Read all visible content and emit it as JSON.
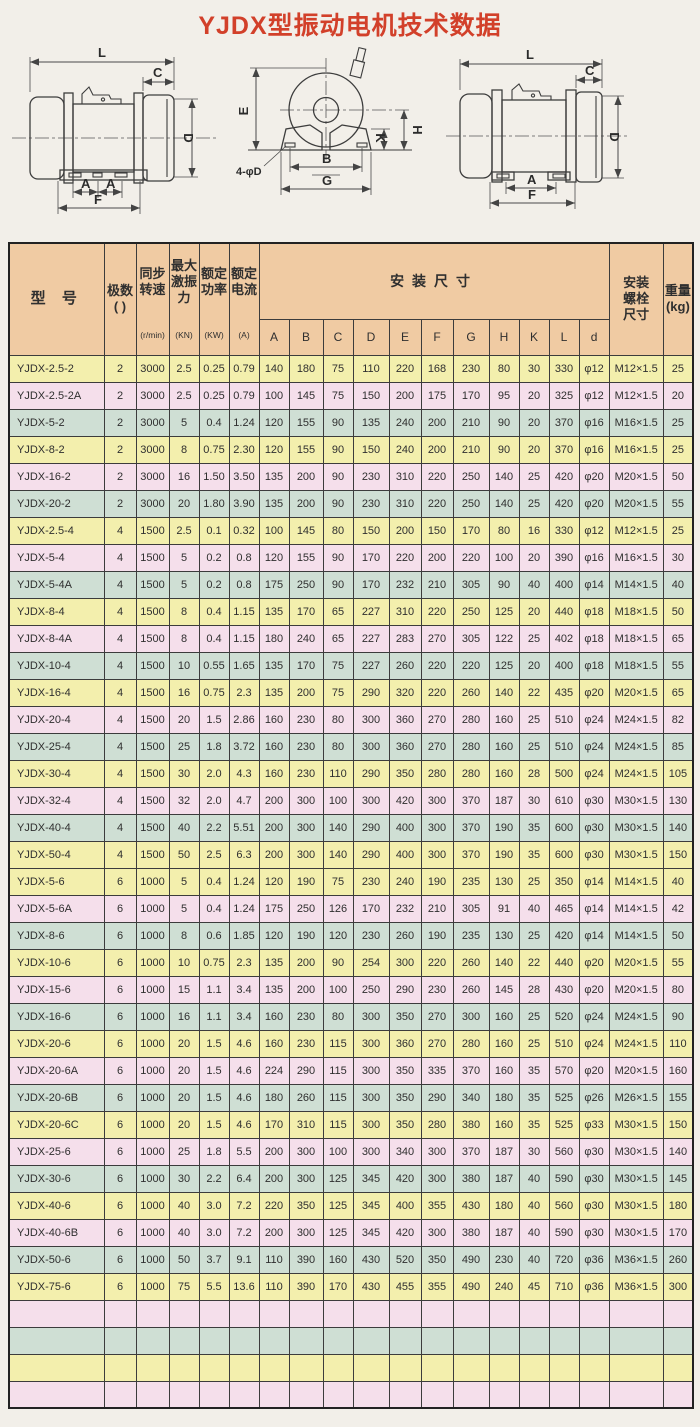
{
  "title": "YJDX型振动电机技术数据",
  "colors": {
    "page_bg": "#f2efe9",
    "title_red": "#d2402a",
    "header_bg": "#f0cba3",
    "row_yellow": "#f3efad",
    "row_pink": "#f5dfeb",
    "row_teal": "#cfdfd4"
  },
  "diagrams": {
    "left_view": {
      "labels": {
        "l": "L",
        "c": "C",
        "d": "D",
        "a1": "A",
        "a2": "A",
        "f": "F"
      }
    },
    "front_view": {
      "labels": {
        "e": "E",
        "k": "K",
        "h": "H",
        "b": "B",
        "g": "G",
        "bolt_note": "4-φD"
      }
    },
    "right_view": {
      "labels": {
        "l": "L",
        "c": "C",
        "d": "D",
        "a": "A",
        "f": "F"
      }
    }
  },
  "table": {
    "header": {
      "model": "型 号",
      "poles": "极数\n( )",
      "speed": "同步\n转速",
      "speed_unit": "(r/min)",
      "force": "最大\n激振\n力",
      "force_unit": "(KN)",
      "power": "额定\n功率",
      "power_unit": "(KW)",
      "current": "额定\n电流",
      "current_unit": "(A)",
      "install": "安装尺寸",
      "dim_letters": [
        "A",
        "B",
        "C",
        "D",
        "E",
        "F",
        "G",
        "H",
        "K",
        "L",
        "d"
      ],
      "bolt": "安装\n螺栓\n尺寸",
      "weight": "重量\n(kg)"
    },
    "rows": [
      {
        "color": "yellow",
        "cells": [
          "YJDX-2.5-2",
          "2",
          "3000",
          "2.5",
          "0.25",
          "0.79",
          "140",
          "180",
          "75",
          "110",
          "220",
          "168",
          "230",
          "80",
          "30",
          "330",
          "φ12",
          "M12×1.5",
          "25"
        ]
      },
      {
        "color": "pink",
        "cells": [
          "YJDX-2.5-2A",
          "2",
          "3000",
          "2.5",
          "0.25",
          "0.79",
          "100",
          "145",
          "75",
          "150",
          "200",
          "175",
          "170",
          "95",
          "20",
          "325",
          "φ12",
          "M12×1.5",
          "20"
        ]
      },
      {
        "color": "teal",
        "cells": [
          "YJDX-5-2",
          "2",
          "3000",
          "5",
          "0.4",
          "1.24",
          "120",
          "155",
          "90",
          "135",
          "240",
          "200",
          "210",
          "90",
          "20",
          "370",
          "φ16",
          "M16×1.5",
          "25"
        ]
      },
      {
        "color": "yellow",
        "cells": [
          "YJDX-8-2",
          "2",
          "3000",
          "8",
          "0.75",
          "2.30",
          "120",
          "155",
          "90",
          "150",
          "240",
          "200",
          "210",
          "90",
          "20",
          "370",
          "φ16",
          "M16×1.5",
          "25"
        ]
      },
      {
        "color": "pink",
        "cells": [
          "YJDX-16-2",
          "2",
          "3000",
          "16",
          "1.50",
          "3.50",
          "135",
          "200",
          "90",
          "230",
          "310",
          "220",
          "250",
          "140",
          "25",
          "420",
          "φ20",
          "M20×1.5",
          "50"
        ]
      },
      {
        "color": "teal",
        "cells": [
          "YJDX-20-2",
          "2",
          "3000",
          "20",
          "1.80",
          "3.90",
          "135",
          "200",
          "90",
          "230",
          "310",
          "220",
          "250",
          "140",
          "25",
          "420",
          "φ20",
          "M20×1.5",
          "55"
        ]
      },
      {
        "color": "yellow",
        "cells": [
          "YJDX-2.5-4",
          "4",
          "1500",
          "2.5",
          "0.1",
          "0.32",
          "100",
          "145",
          "80",
          "150",
          "200",
          "150",
          "170",
          "80",
          "16",
          "330",
          "φ12",
          "M12×1.5",
          "25"
        ]
      },
      {
        "color": "pink",
        "cells": [
          "YJDX-5-4",
          "4",
          "1500",
          "5",
          "0.2",
          "0.8",
          "120",
          "155",
          "90",
          "170",
          "220",
          "200",
          "220",
          "100",
          "20",
          "390",
          "φ16",
          "M16×1.5",
          "30"
        ]
      },
      {
        "color": "teal",
        "cells": [
          "YJDX-5-4A",
          "4",
          "1500",
          "5",
          "0.2",
          "0.8",
          "175",
          "250",
          "90",
          "170",
          "232",
          "210",
          "305",
          "90",
          "40",
          "400",
          "φ14",
          "M14×1.5",
          "40"
        ]
      },
      {
        "color": "yellow",
        "cells": [
          "YJDX-8-4",
          "4",
          "1500",
          "8",
          "0.4",
          "1.15",
          "135",
          "170",
          "65",
          "227",
          "310",
          "220",
          "250",
          "125",
          "20",
          "440",
          "φ18",
          "M18×1.5",
          "50"
        ]
      },
      {
        "color": "pink",
        "cells": [
          "YJDX-8-4A",
          "4",
          "1500",
          "8",
          "0.4",
          "1.15",
          "180",
          "240",
          "65",
          "227",
          "283",
          "270",
          "305",
          "122",
          "25",
          "402",
          "φ18",
          "M18×1.5",
          "65"
        ]
      },
      {
        "color": "teal",
        "cells": [
          "YJDX-10-4",
          "4",
          "1500",
          "10",
          "0.55",
          "1.65",
          "135",
          "170",
          "75",
          "227",
          "260",
          "220",
          "220",
          "125",
          "20",
          "400",
          "φ18",
          "M18×1.5",
          "55"
        ]
      },
      {
        "color": "yellow",
        "cells": [
          "YJDX-16-4",
          "4",
          "1500",
          "16",
          "0.75",
          "2.3",
          "135",
          "200",
          "75",
          "290",
          "320",
          "220",
          "260",
          "140",
          "22",
          "435",
          "φ20",
          "M20×1.5",
          "65"
        ]
      },
      {
        "color": "pink",
        "cells": [
          "YJDX-20-4",
          "4",
          "1500",
          "20",
          "1.5",
          "2.86",
          "160",
          "230",
          "80",
          "300",
          "360",
          "270",
          "280",
          "160",
          "25",
          "510",
          "φ24",
          "M24×1.5",
          "82"
        ]
      },
      {
        "color": "teal",
        "cells": [
          "YJDX-25-4",
          "4",
          "1500",
          "25",
          "1.8",
          "3.72",
          "160",
          "230",
          "80",
          "300",
          "360",
          "270",
          "280",
          "160",
          "25",
          "510",
          "φ24",
          "M24×1.5",
          "85"
        ]
      },
      {
        "color": "yellow",
        "cells": [
          "YJDX-30-4",
          "4",
          "1500",
          "30",
          "2.0",
          "4.3",
          "160",
          "230",
          "110",
          "290",
          "350",
          "280",
          "280",
          "160",
          "28",
          "500",
          "φ24",
          "M24×1.5",
          "105"
        ]
      },
      {
        "color": "pink",
        "cells": [
          "YJDX-32-4",
          "4",
          "1500",
          "32",
          "2.0",
          "4.7",
          "200",
          "300",
          "100",
          "300",
          "420",
          "300",
          "370",
          "187",
          "30",
          "610",
          "φ30",
          "M30×1.5",
          "130"
        ]
      },
      {
        "color": "teal",
        "cells": [
          "YJDX-40-4",
          "4",
          "1500",
          "40",
          "2.2",
          "5.51",
          "200",
          "300",
          "140",
          "290",
          "400",
          "300",
          "370",
          "190",
          "35",
          "600",
          "φ30",
          "M30×1.5",
          "140"
        ]
      },
      {
        "color": "yellow",
        "cells": [
          "YJDX-50-4",
          "4",
          "1500",
          "50",
          "2.5",
          "6.3",
          "200",
          "300",
          "140",
          "290",
          "400",
          "300",
          "370",
          "190",
          "35",
          "600",
          "φ30",
          "M30×1.5",
          "150"
        ]
      },
      {
        "color": "yellow",
        "cells": [
          "YJDX-5-6",
          "6",
          "1000",
          "5",
          "0.4",
          "1.24",
          "120",
          "190",
          "75",
          "230",
          "240",
          "190",
          "235",
          "130",
          "25",
          "350",
          "φ14",
          "M14×1.5",
          "40"
        ]
      },
      {
        "color": "pink",
        "cells": [
          "YJDX-5-6A",
          "6",
          "1000",
          "5",
          "0.4",
          "1.24",
          "175",
          "250",
          "126",
          "170",
          "232",
          "210",
          "305",
          "91",
          "40",
          "465",
          "φ14",
          "M14×1.5",
          "42"
        ]
      },
      {
        "color": "teal",
        "cells": [
          "YJDX-8-6",
          "6",
          "1000",
          "8",
          "0.6",
          "1.85",
          "120",
          "190",
          "120",
          "230",
          "260",
          "190",
          "235",
          "130",
          "25",
          "420",
          "φ14",
          "M14×1.5",
          "50"
        ]
      },
      {
        "color": "yellow",
        "cells": [
          "YJDX-10-6",
          "6",
          "1000",
          "10",
          "0.75",
          "2.3",
          "135",
          "200",
          "90",
          "254",
          "300",
          "220",
          "260",
          "140",
          "22",
          "440",
          "φ20",
          "M20×1.5",
          "55"
        ]
      },
      {
        "color": "pink",
        "cells": [
          "YJDX-15-6",
          "6",
          "1000",
          "15",
          "1.1",
          "3.4",
          "135",
          "200",
          "100",
          "250",
          "290",
          "230",
          "260",
          "145",
          "28",
          "430",
          "φ20",
          "M20×1.5",
          "80"
        ]
      },
      {
        "color": "teal",
        "cells": [
          "YJDX-16-6",
          "6",
          "1000",
          "16",
          "1.1",
          "3.4",
          "160",
          "230",
          "80",
          "300",
          "350",
          "270",
          "300",
          "160",
          "25",
          "520",
          "φ24",
          "M24×1.5",
          "90"
        ]
      },
      {
        "color": "yellow",
        "cells": [
          "YJDX-20-6",
          "6",
          "1000",
          "20",
          "1.5",
          "4.6",
          "160",
          "230",
          "115",
          "300",
          "360",
          "270",
          "280",
          "160",
          "25",
          "510",
          "φ24",
          "M24×1.5",
          "110"
        ]
      },
      {
        "color": "pink",
        "cells": [
          "YJDX-20-6A",
          "6",
          "1000",
          "20",
          "1.5",
          "4.6",
          "224",
          "290",
          "115",
          "300",
          "350",
          "335",
          "370",
          "160",
          "35",
          "570",
          "φ20",
          "M20×1.5",
          "160"
        ]
      },
      {
        "color": "teal",
        "cells": [
          "YJDX-20-6B",
          "6",
          "1000",
          "20",
          "1.5",
          "4.6",
          "180",
          "260",
          "115",
          "300",
          "350",
          "290",
          "340",
          "180",
          "35",
          "525",
          "φ26",
          "M26×1.5",
          "155"
        ]
      },
      {
        "color": "yellow",
        "cells": [
          "YJDX-20-6C",
          "6",
          "1000",
          "20",
          "1.5",
          "4.6",
          "170",
          "310",
          "115",
          "300",
          "350",
          "280",
          "380",
          "160",
          "35",
          "525",
          "φ33",
          "M30×1.5",
          "150"
        ]
      },
      {
        "color": "pink",
        "cells": [
          "YJDX-25-6",
          "6",
          "1000",
          "25",
          "1.8",
          "5.5",
          "200",
          "300",
          "100",
          "300",
          "340",
          "300",
          "370",
          "187",
          "30",
          "560",
          "φ30",
          "M30×1.5",
          "140"
        ]
      },
      {
        "color": "teal",
        "cells": [
          "YJDX-30-6",
          "6",
          "1000",
          "30",
          "2.2",
          "6.4",
          "200",
          "300",
          "125",
          "345",
          "420",
          "300",
          "380",
          "187",
          "40",
          "590",
          "φ30",
          "M30×1.5",
          "145"
        ]
      },
      {
        "color": "yellow",
        "cells": [
          "YJDX-40-6",
          "6",
          "1000",
          "40",
          "3.0",
          "7.2",
          "220",
          "350",
          "125",
          "345",
          "400",
          "355",
          "430",
          "180",
          "40",
          "560",
          "φ30",
          "M30×1.5",
          "180"
        ]
      },
      {
        "color": "pink",
        "cells": [
          "YJDX-40-6B",
          "6",
          "1000",
          "40",
          "3.0",
          "7.2",
          "200",
          "300",
          "125",
          "345",
          "420",
          "300",
          "380",
          "187",
          "40",
          "590",
          "φ30",
          "M30×1.5",
          "170"
        ]
      },
      {
        "color": "teal",
        "cells": [
          "YJDX-50-6",
          "6",
          "1000",
          "50",
          "3.7",
          "9.1",
          "110",
          "390",
          "160",
          "430",
          "520",
          "350",
          "490",
          "230",
          "40",
          "720",
          "φ36",
          "M36×1.5",
          "260"
        ]
      },
      {
        "color": "yellow",
        "cells": [
          "YJDX-75-6",
          "6",
          "1000",
          "75",
          "5.5",
          "13.6",
          "110",
          "390",
          "170",
          "430",
          "455",
          "355",
          "490",
          "240",
          "45",
          "710",
          "φ36",
          "M36×1.5",
          "300"
        ]
      },
      {
        "color": "pink",
        "cells": [
          "",
          "",
          "",
          "",
          "",
          "",
          "",
          "",
          "",
          "",
          "",
          "",
          "",
          "",
          "",
          "",
          "",
          "",
          ""
        ]
      },
      {
        "color": "teal",
        "cells": [
          "",
          "",
          "",
          "",
          "",
          "",
          "",
          "",
          "",
          "",
          "",
          "",
          "",
          "",
          "",
          "",
          "",
          "",
          ""
        ]
      },
      {
        "color": "yellow",
        "cells": [
          "",
          "",
          "",
          "",
          "",
          "",
          "",
          "",
          "",
          "",
          "",
          "",
          "",
          "",
          "",
          "",
          "",
          "",
          ""
        ]
      },
      {
        "color": "pink",
        "cells": [
          "",
          "",
          "",
          "",
          "",
          "",
          "",
          "",
          "",
          "",
          "",
          "",
          "",
          "",
          "",
          "",
          "",
          "",
          ""
        ]
      }
    ]
  }
}
